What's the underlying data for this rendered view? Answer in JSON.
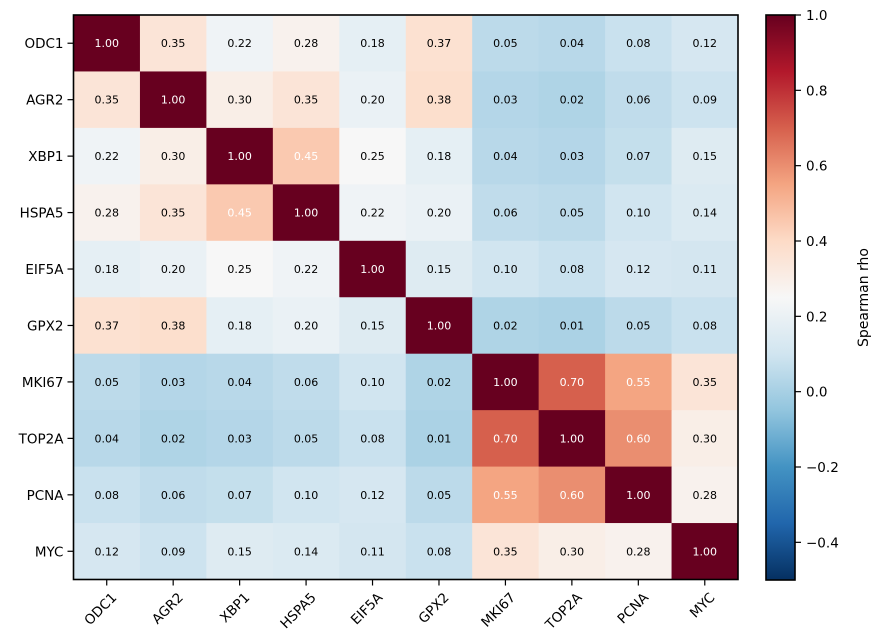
{
  "chart_data": {
    "type": "heatmap",
    "title": "",
    "xlabel": "",
    "ylabel": "",
    "x_labels": [
      "ODC1",
      "AGR2",
      "XBP1",
      "HSPA5",
      "EIF5A",
      "GPX2",
      "MKI67",
      "TOP2A",
      "PCNA",
      "MYC"
    ],
    "y_labels": [
      "ODC1",
      "AGR2",
      "XBP1",
      "HSPA5",
      "EIF5A",
      "GPX2",
      "MKI67",
      "TOP2A",
      "PCNA",
      "MYC"
    ],
    "values": [
      [
        1.0,
        0.35,
        0.22,
        0.28,
        0.18,
        0.37,
        0.05,
        0.04,
        0.08,
        0.12
      ],
      [
        0.35,
        1.0,
        0.3,
        0.35,
        0.2,
        0.38,
        0.03,
        0.02,
        0.06,
        0.09
      ],
      [
        0.22,
        0.3,
        1.0,
        0.45,
        0.25,
        0.18,
        0.04,
        0.03,
        0.07,
        0.15
      ],
      [
        0.28,
        0.35,
        0.45,
        1.0,
        0.22,
        0.2,
        0.06,
        0.05,
        0.1,
        0.14
      ],
      [
        0.18,
        0.2,
        0.25,
        0.22,
        1.0,
        0.15,
        0.1,
        0.08,
        0.12,
        0.11
      ],
      [
        0.37,
        0.38,
        0.18,
        0.2,
        0.15,
        1.0,
        0.02,
        0.01,
        0.05,
        0.08
      ],
      [
        0.05,
        0.03,
        0.04,
        0.06,
        0.1,
        0.02,
        1.0,
        0.7,
        0.55,
        0.35
      ],
      [
        0.04,
        0.02,
        0.03,
        0.05,
        0.08,
        0.01,
        0.7,
        1.0,
        0.6,
        0.3
      ],
      [
        0.08,
        0.06,
        0.07,
        0.1,
        0.12,
        0.05,
        0.55,
        0.6,
        1.0,
        0.28
      ],
      [
        0.12,
        0.09,
        0.15,
        0.14,
        0.11,
        0.08,
        0.35,
        0.3,
        0.28,
        1.0
      ]
    ],
    "annotation_format": "0.00",
    "annotation_text_light_above": 0.4,
    "colormap": "RdBu_r",
    "vmin": -0.5,
    "vmax": 1.0,
    "colorbar": {
      "label": "Spearman rho",
      "ticks": [
        -0.4,
        -0.2,
        0.0,
        0.2,
        0.4,
        0.6,
        0.8,
        1.0
      ],
      "tick_labels": [
        "−0.4",
        "−0.2",
        "0.0",
        "0.2",
        "0.4",
        "0.6",
        "0.8",
        "1.0"
      ],
      "placement": "right"
    },
    "x_tick_rotation_deg": 45,
    "grid": false,
    "colormap_stops": [
      "#053061",
      "#2166ac",
      "#4393c3",
      "#92c5de",
      "#d1e5f0",
      "#f7f7f7",
      "#fddbc7",
      "#f4a582",
      "#d6604d",
      "#b2182b",
      "#67001f"
    ],
    "annotation_colors": {
      "dark": "#000000",
      "light": "#ffffff"
    }
  }
}
